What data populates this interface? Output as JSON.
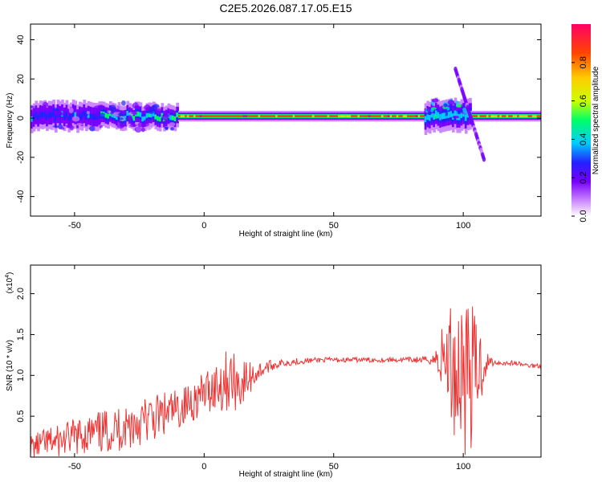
{
  "figure_title": "C2E5.2026.087.17.05.E15",
  "colors": {
    "snr_line": "#ee3333",
    "frame": "#000000",
    "bright_band": "#e8222a",
    "colormap": [
      "#ffffff",
      "#cc88ff",
      "#7700ff",
      "#2222ff",
      "#00ccff",
      "#00ff66",
      "#ccff00",
      "#ffcc00",
      "#ff4400",
      "#ff0066"
    ]
  },
  "chart_data": [
    {
      "type": "heatmap",
      "xlabel": "Height of straight line (km)",
      "ylabel": "Frequency (Hz)",
      "xlim": [
        -67,
        130
      ],
      "ylim": [
        -50,
        48
      ],
      "xticks": [
        "-50",
        "0",
        "50",
        "100"
      ],
      "xtick_values": [
        -50,
        0,
        50,
        100
      ],
      "yticks": [
        "40",
        "20",
        "0",
        "-20",
        "-40"
      ],
      "ytick_values": [
        40,
        20,
        0,
        -20,
        -40
      ],
      "colorbar": {
        "label": "Normalized spectral amplitude",
        "range": [
          0,
          1
        ],
        "ticks": [
          "0.0",
          "0.2",
          "0.4",
          "0.6",
          "0.8"
        ],
        "tick_values": [
          0.0,
          0.2,
          0.4,
          0.6,
          0.8
        ]
      },
      "band_center_hz": 1,
      "band_segments": [
        {
          "x_from": -67,
          "x_to": -40,
          "width_hz": 8,
          "peak_amplitude": 0.4
        },
        {
          "x_from": -40,
          "x_to": -10,
          "width_hz": 7,
          "peak_amplitude": 0.55
        },
        {
          "x_from": -10,
          "x_to": 85,
          "width_hz": 3,
          "peak_amplitude": 0.95
        },
        {
          "x_from": 85,
          "x_to": 103,
          "width_hz": 9,
          "peak_amplitude": 0.5
        },
        {
          "x_from": 103,
          "x_to": 130,
          "width_hz": 3,
          "peak_amplitude": 0.9
        }
      ],
      "diagonal_feature": {
        "x_start": 97,
        "freq_start_hz": 25,
        "x_end": 108,
        "freq_end_hz": -21
      },
      "grid": false
    },
    {
      "type": "line",
      "xlabel": "Height of straight line (km)",
      "ylabel": "SNR (10 * v/v)",
      "y_multiplier": "(x10",
      "y_multiplier_exp": "4",
      "y_multiplier_close": ")",
      "xlim": [
        -67,
        130
      ],
      "ylim": [
        0.0,
        2.35
      ],
      "xticks": [
        "-50",
        "0",
        "50",
        "100"
      ],
      "xtick_values": [
        -50,
        0,
        50,
        100
      ],
      "yticks": [
        "0.5",
        "1.0",
        "1.5",
        "2.0"
      ],
      "ytick_values": [
        0.5,
        1.0,
        1.5,
        2.0
      ],
      "series": [
        {
          "x": [
            -67,
            -60,
            -55,
            -50,
            -45,
            -40,
            -35,
            -30,
            -25,
            -20,
            -15,
            -10,
            -5,
            0,
            3,
            6,
            9,
            12,
            15,
            18,
            21,
            24,
            27,
            30,
            35,
            40,
            45,
            50,
            55,
            60,
            65,
            70,
            75,
            80,
            85,
            88,
            91,
            94,
            97,
            100,
            103,
            106,
            109,
            112,
            116,
            120,
            125,
            130
          ],
          "y": [
            0.12,
            0.18,
            0.2,
            0.25,
            0.28,
            0.3,
            0.33,
            0.38,
            0.43,
            0.47,
            0.52,
            0.58,
            0.68,
            0.78,
            0.85,
            0.9,
            0.95,
            0.92,
            0.9,
            0.98,
            1.05,
            1.1,
            1.13,
            1.15,
            1.17,
            1.18,
            1.19,
            1.19,
            1.19,
            1.19,
            1.19,
            1.19,
            1.19,
            1.19,
            1.19,
            1.19,
            1.2,
            1.22,
            1.05,
            1.15,
            1.0,
            1.1,
            1.16,
            1.16,
            1.15,
            1.15,
            1.12,
            1.12
          ],
          "noise": [
            0.15,
            0.18,
            0.2,
            0.22,
            0.24,
            0.26,
            0.28,
            0.3,
            0.3,
            0.3,
            0.28,
            0.25,
            0.25,
            0.25,
            0.3,
            0.35,
            0.38,
            0.35,
            0.3,
            0.2,
            0.12,
            0.08,
            0.06,
            0.05,
            0.04,
            0.035,
            0.03,
            0.03,
            0.03,
            0.03,
            0.03,
            0.03,
            0.03,
            0.035,
            0.04,
            0.06,
            0.3,
            0.7,
            0.9,
            1.15,
            0.9,
            0.6,
            0.15,
            0.03,
            0.03,
            0.03,
            0.03,
            0.03
          ]
        }
      ],
      "grid": false
    }
  ]
}
